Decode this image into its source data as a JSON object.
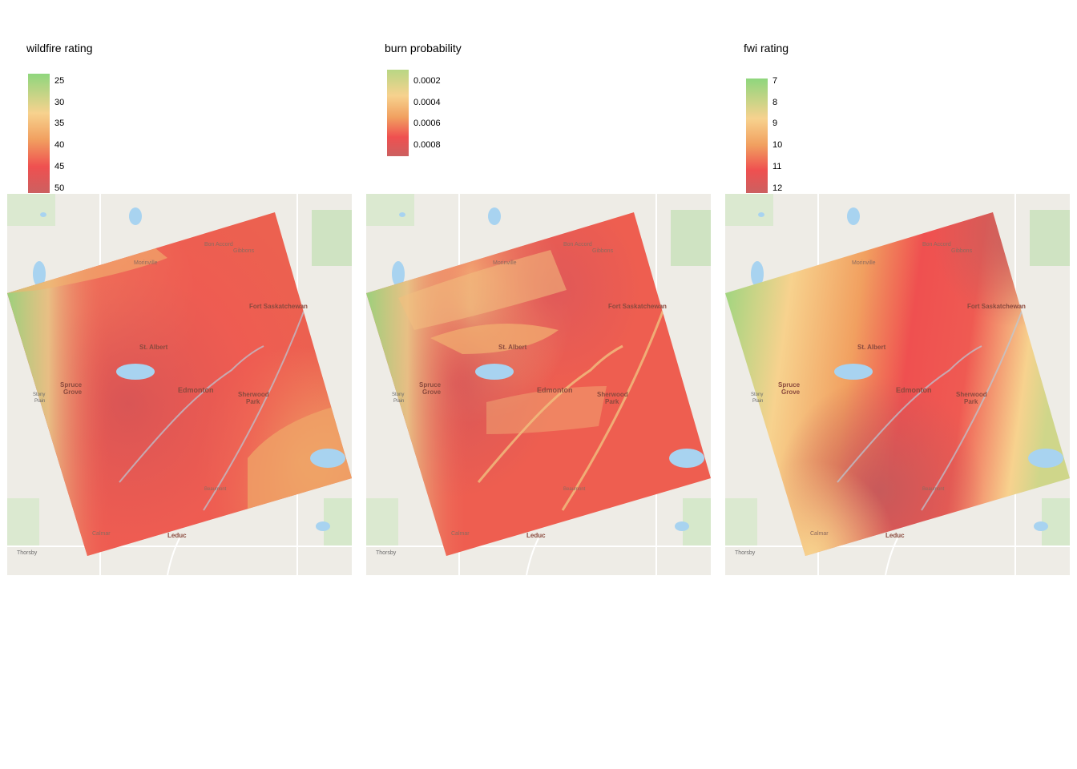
{
  "colors": {
    "green": "#8fd67d",
    "yellow": "#f7d28e",
    "orange": "#f1a060",
    "red": "#ef5050",
    "darkred": "#cc6060",
    "land": "#eeece6",
    "water": "#a8d3f0",
    "park": "#cfe3c2"
  },
  "panels": [
    {
      "id": "wildfire",
      "legend": {
        "title": "wildfire rating",
        "ticks": [
          "25",
          "30",
          "35",
          "40",
          "45",
          "50"
        ]
      }
    },
    {
      "id": "burn",
      "legend": {
        "title": "burn probability",
        "ticks": [
          "0.0002",
          "0.0004",
          "0.0006",
          "0.0008"
        ]
      }
    },
    {
      "id": "fwi",
      "legend": {
        "title": "fwi rating",
        "ticks": [
          "7",
          "8",
          "9",
          "10",
          "11",
          "12"
        ]
      }
    }
  ],
  "places": {
    "bon_accord": "Bon Accord",
    "gibbons": "Gibbons",
    "morinville": "Morinville",
    "fort_saskatchewan": "Fort Saskatchewan",
    "st_albert": "St. Albert",
    "spruce_grove_1": "Spruce",
    "spruce_grove_2": "Grove",
    "stony_plain_1": "Stony",
    "stony_plain_2": "Plain",
    "edmonton": "Edmonton",
    "sherwood_park_1": "Sherwood",
    "sherwood_park_2": "Park",
    "beaumont": "Beaumont",
    "calmar": "Calmar",
    "leduc": "Leduc",
    "thorsby": "Thorsby"
  }
}
